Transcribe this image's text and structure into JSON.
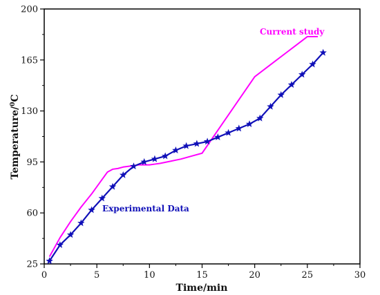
{
  "chart_data": {
    "type": "line",
    "xlabel": "Time/min",
    "ylabel_main": "Temperature/",
    "ylabel_sup": "0",
    "ylabel_unit": "C",
    "xlim": [
      0,
      30
    ],
    "ylim": [
      25,
      200
    ],
    "x_ticks": [
      "0",
      "5",
      "10",
      "15",
      "20",
      "25",
      "30"
    ],
    "y_ticks": [
      "25",
      "60",
      "95",
      "130",
      "165",
      "200"
    ],
    "grid": false,
    "series": [
      {
        "name": "Current study",
        "color": "#ff00ff",
        "marker": "none",
        "x": [
          0.5,
          1.5,
          2.5,
          3.5,
          4.5,
          5.5,
          6.0,
          6.5,
          7.0,
          7.5,
          8.0,
          9.0,
          10.0,
          10.5,
          11.0,
          12.0,
          13.0,
          14.0,
          15.0,
          16.0,
          17.0,
          18.0,
          19.0,
          20.0,
          21.0,
          22.0,
          23.0,
          24.0,
          25.0,
          26.0
        ],
        "y": [
          30,
          43,
          54,
          64,
          73,
          83,
          88,
          90,
          90.5,
          91.5,
          92,
          93,
          93,
          93.5,
          94,
          95.5,
          97,
          99,
          101,
          111.5,
          122,
          132.5,
          143,
          153.5,
          159,
          164.5,
          170,
          175.5,
          181,
          181
        ]
      },
      {
        "name": "Experimental Data",
        "color": "#1010b8",
        "marker": "star",
        "x": [
          0.5,
          1.5,
          2.5,
          3.5,
          4.5,
          5.5,
          6.5,
          7.5,
          8.5,
          9.5,
          10.5,
          11.5,
          12.5,
          13.5,
          14.5,
          15.5,
          16.5,
          17.5,
          18.5,
          19.5,
          20.5,
          21.5,
          22.5,
          23.5,
          24.5,
          25.5,
          26.5
        ],
        "y": [
          27,
          38,
          45,
          53,
          62,
          70,
          78,
          86,
          92,
          95,
          97,
          99,
          103,
          106,
          107.5,
          109,
          112,
          115,
          118,
          121,
          125,
          133,
          141,
          148,
          155,
          162,
          170
        ]
      }
    ]
  }
}
